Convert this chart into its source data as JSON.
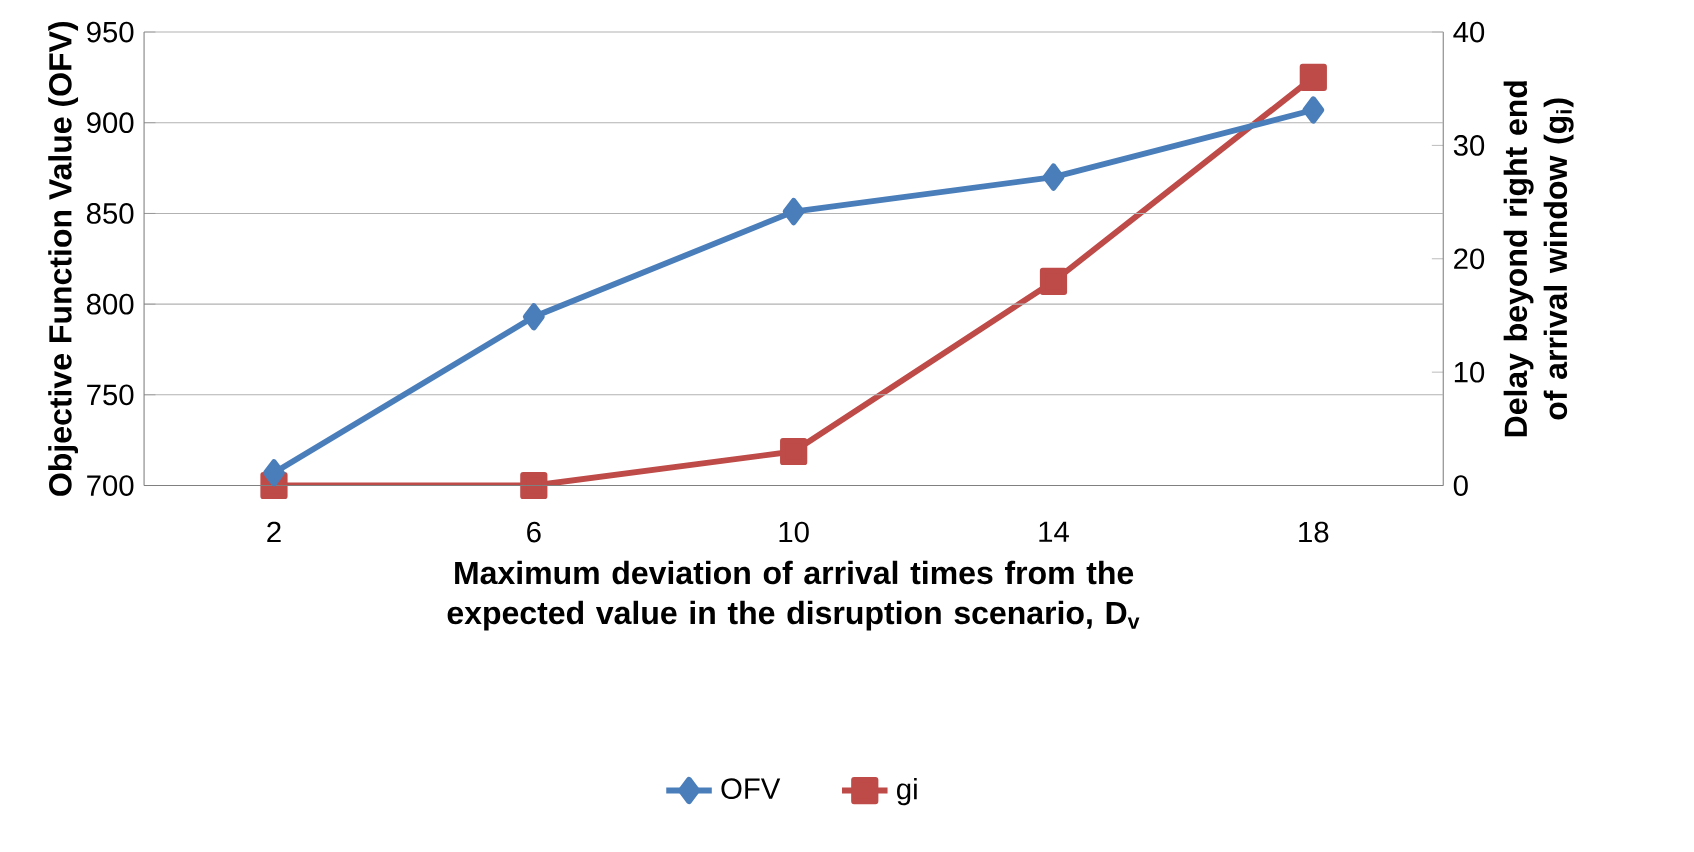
{
  "chart_data": {
    "type": "line",
    "xlabel": "Maximum deviation of arrival times from the expected value in the disruption scenario, D$_{v}$",
    "ylabel": "Objective Function Value (OFV)",
    "y2label": "Delay beyond right end of arrival window (g$_{i}$)",
    "categories": [
      "2",
      "6",
      "10",
      "14",
      "18"
    ],
    "series": [
      {
        "name": "OFV",
        "color": "#4a7ebb",
        "marker": "diamond",
        "values": [
          707,
          793,
          851,
          870,
          907
        ]
      },
      {
        "name": "gi",
        "color": "#be4b48",
        "marker": "square",
        "axis": "y2",
        "values": [
          0,
          0,
          3,
          18,
          36
        ]
      }
    ],
    "ylim": [
      700,
      950
    ],
    "yticks": [
      700,
      750,
      800,
      850,
      900,
      950
    ],
    "y2lim": [
      0,
      40
    ],
    "y2ticks": [
      0,
      10,
      20,
      30,
      40
    ],
    "grid": "y",
    "legend": "bottom"
  }
}
